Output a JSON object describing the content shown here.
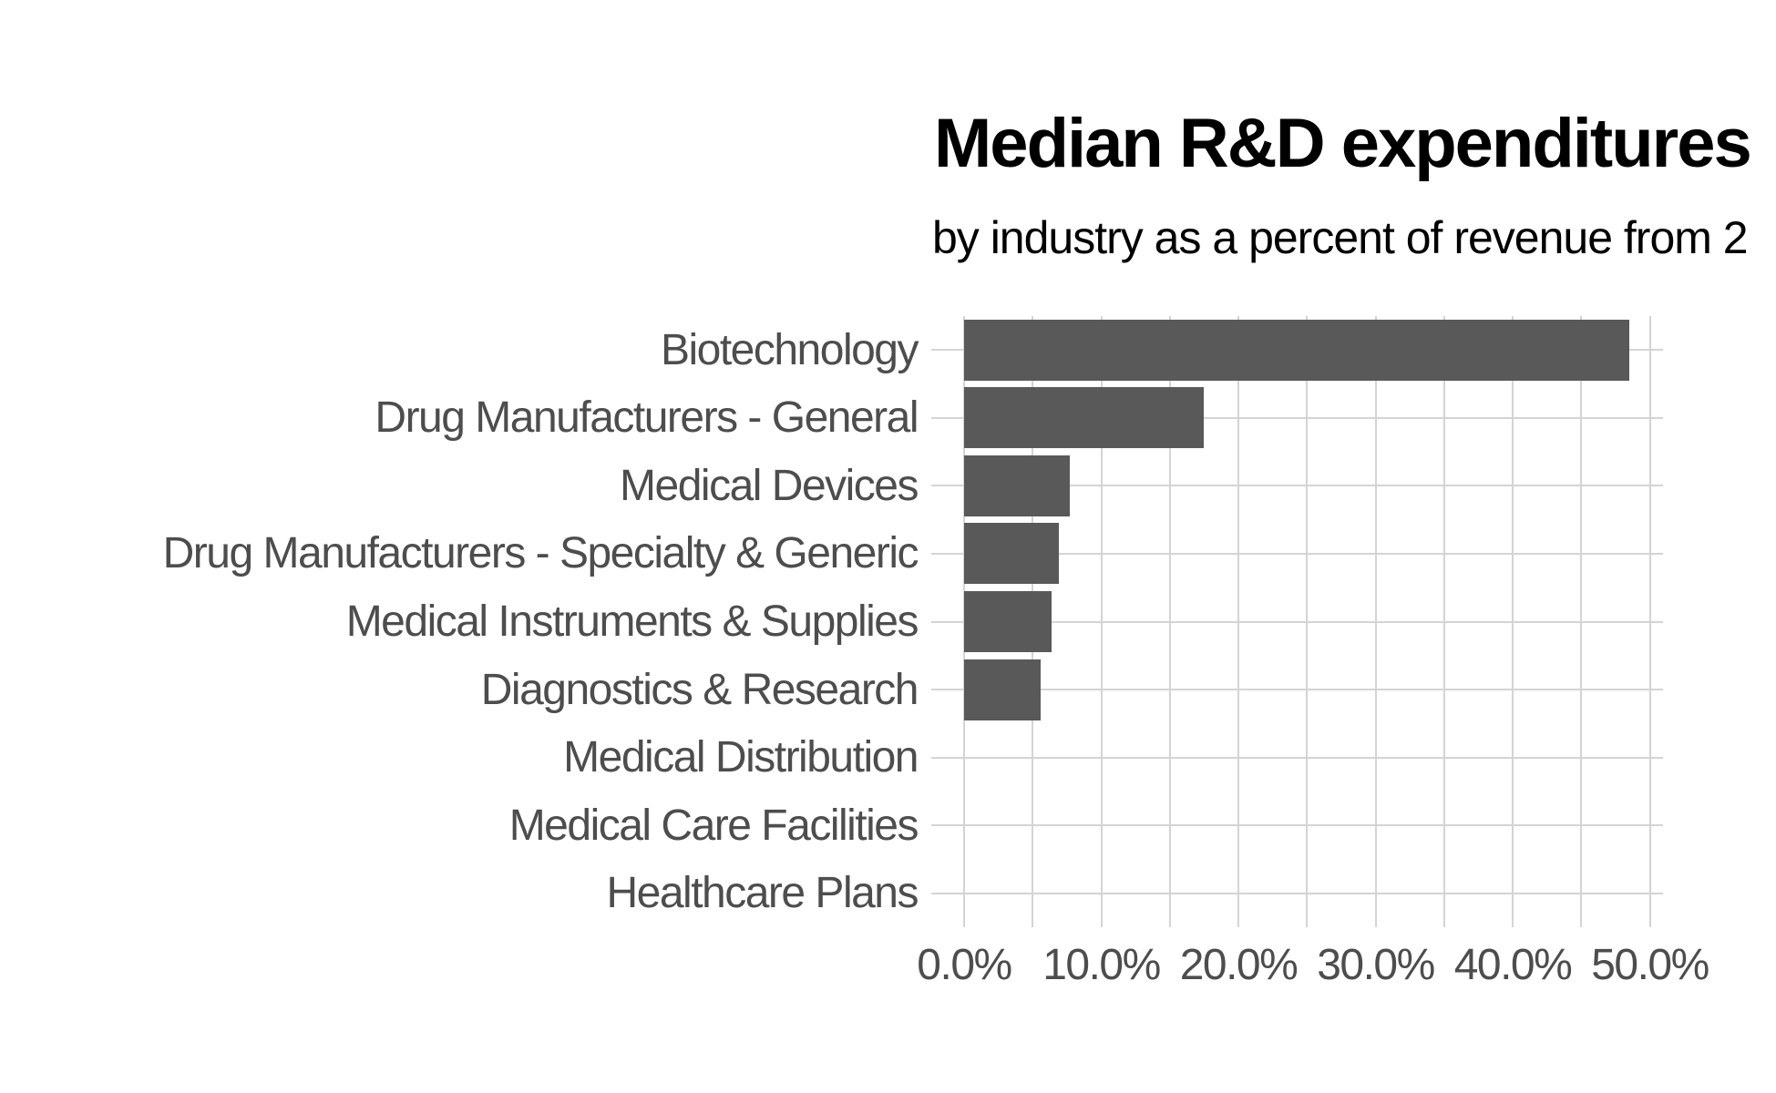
{
  "chart_data": {
    "type": "bar",
    "orientation": "horizontal",
    "title": "Median R&D expenditures",
    "subtitle": "by industry as a percent of revenue from 2",
    "categories": [
      "Biotechnology",
      "Drug Manufacturers - General",
      "Medical Devices",
      "Drug Manufacturers - Specialty & Generic",
      "Medical Instruments & Supplies",
      "Diagnostics & Research",
      "Medical Distribution",
      "Medical Care Facilities",
      "Healthcare Plans"
    ],
    "values": [
      48.5,
      17.5,
      7.7,
      6.9,
      6.4,
      5.6,
      0,
      0,
      0
    ],
    "xlabel": "",
    "ylabel": "",
    "x_tick_labels": [
      "0.0%",
      "10.0%",
      "20.0%",
      "30.0%",
      "40.0%",
      "50.0%"
    ],
    "x_tick_values": [
      0,
      10,
      20,
      30,
      40,
      50
    ],
    "x_minor_tick_values": [
      5,
      15,
      25,
      35,
      45
    ],
    "xlim": [
      -2.4,
      51.0
    ],
    "grid": "on",
    "legend": "none"
  },
  "colors": {
    "bar_fill": "#595959",
    "gridline": "#D4D4D4",
    "axis_text": "#4D4D4D",
    "title_text": "#000000",
    "background": "#FFFFFF"
  }
}
